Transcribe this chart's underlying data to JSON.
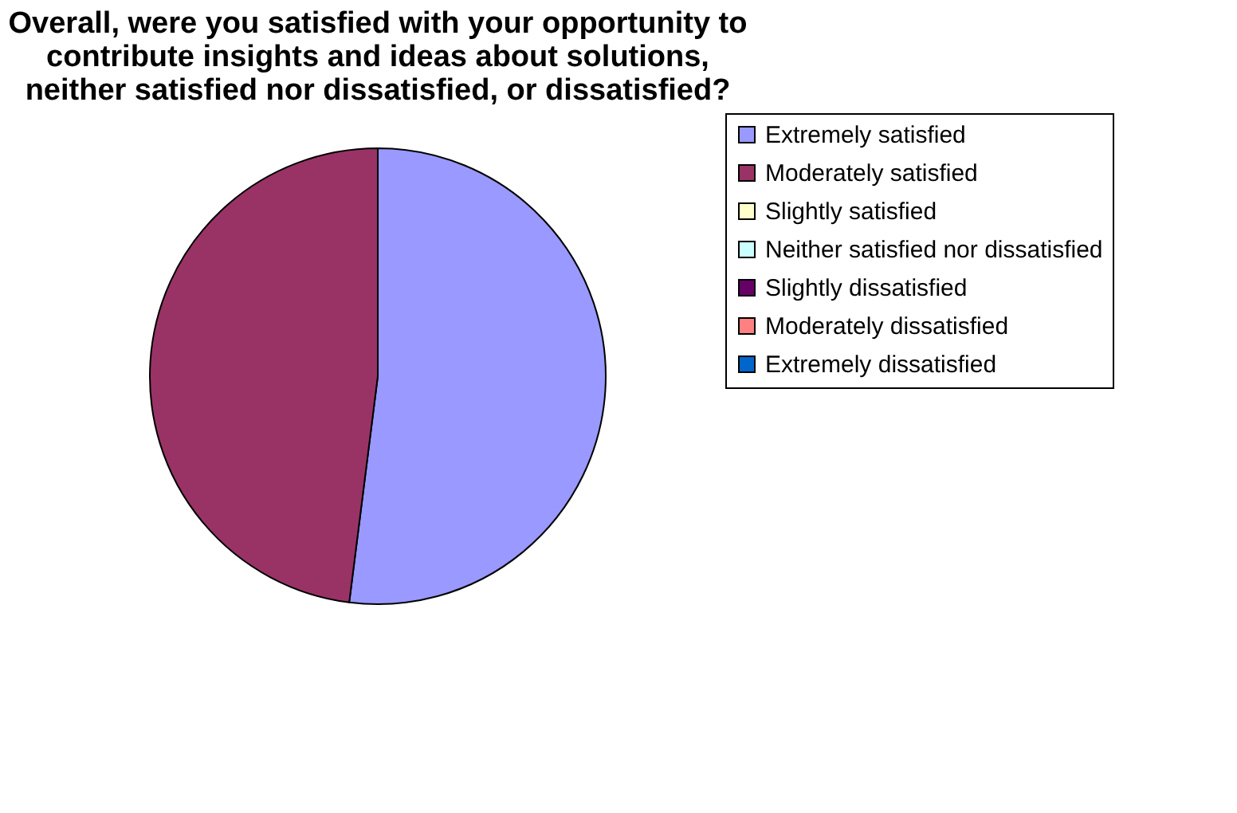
{
  "chart_data": {
    "type": "pie",
    "title": "Overall, were you satisfied with your opportunity to\ncontribute insights and ideas about solutions,\nneither satisfied nor dissatisfied, or dissatisfied?",
    "categories": [
      "Extremely satisfied",
      "Moderately satisfied",
      "Slightly satisfied",
      "Neither satisfied nor dissatisfied",
      "Slightly dissatisfied",
      "Moderately dissatisfied",
      "Extremely dissatisfied"
    ],
    "values": [
      52,
      48,
      0,
      0,
      0,
      0,
      0
    ],
    "colors": [
      "#9999ff",
      "#993366",
      "#ffffcc",
      "#ccffff",
      "#660066",
      "#ff8080",
      "#0066cc"
    ],
    "legend": "right"
  }
}
